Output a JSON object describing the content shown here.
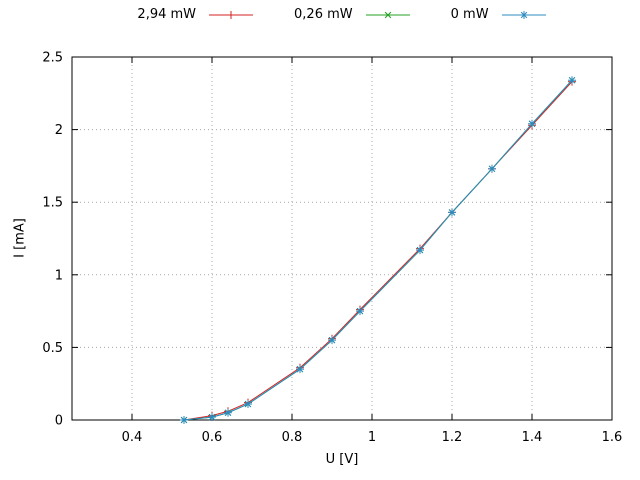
{
  "chart_data": {
    "type": "line",
    "title": "",
    "xlabel": "U [V]",
    "ylabel": "I [mA]",
    "xlim": [
      0.25,
      1.6
    ],
    "ylim": [
      0,
      2.5
    ],
    "xticks": [
      0.4,
      0.6,
      0.8,
      1.0,
      1.2,
      1.4,
      1.6
    ],
    "xtick_labels": [
      "0.4",
      "0.6",
      "0.8",
      "1",
      "1.2",
      "1.4",
      "1.6"
    ],
    "yticks": [
      0,
      0.5,
      1.0,
      1.5,
      2.0,
      2.5
    ],
    "ytick_labels": [
      "0",
      "0.5",
      "1",
      "1.5",
      "2",
      "2.5"
    ],
    "grid": true,
    "grid_style": "dotted",
    "legend_position": "top-outside-horizontal",
    "border_color": "#000000",
    "grid_color": "#a8a8a8",
    "series": [
      {
        "name": "2,94 mW",
        "color": "#d62222",
        "marker": "plus",
        "x": [
          0.53,
          0.6,
          0.64,
          0.69,
          0.82,
          0.9,
          0.97,
          1.12,
          1.2,
          1.3,
          1.4,
          1.5
        ],
        "y": [
          0.0,
          0.03,
          0.06,
          0.12,
          0.36,
          0.56,
          0.76,
          1.18,
          1.43,
          1.73,
          2.03,
          2.33
        ]
      },
      {
        "name": "0,26 mW",
        "color": "#22a022",
        "marker": "x",
        "x": [
          0.53,
          0.6,
          0.64,
          0.69,
          0.82,
          0.9,
          0.97,
          1.12,
          1.2,
          1.3,
          1.4,
          1.5
        ],
        "y": [
          0.0,
          0.02,
          0.05,
          0.11,
          0.35,
          0.55,
          0.75,
          1.17,
          1.43,
          1.73,
          2.04,
          2.34
        ]
      },
      {
        "name": "0 mW",
        "color": "#2e8bc0",
        "marker": "asterisk",
        "x": [
          0.53,
          0.6,
          0.64,
          0.69,
          0.82,
          0.9,
          0.97,
          1.12,
          1.2,
          1.3,
          1.4,
          1.5
        ],
        "y": [
          0.0,
          0.02,
          0.05,
          0.11,
          0.35,
          0.55,
          0.75,
          1.17,
          1.43,
          1.73,
          2.04,
          2.34
        ]
      }
    ]
  }
}
